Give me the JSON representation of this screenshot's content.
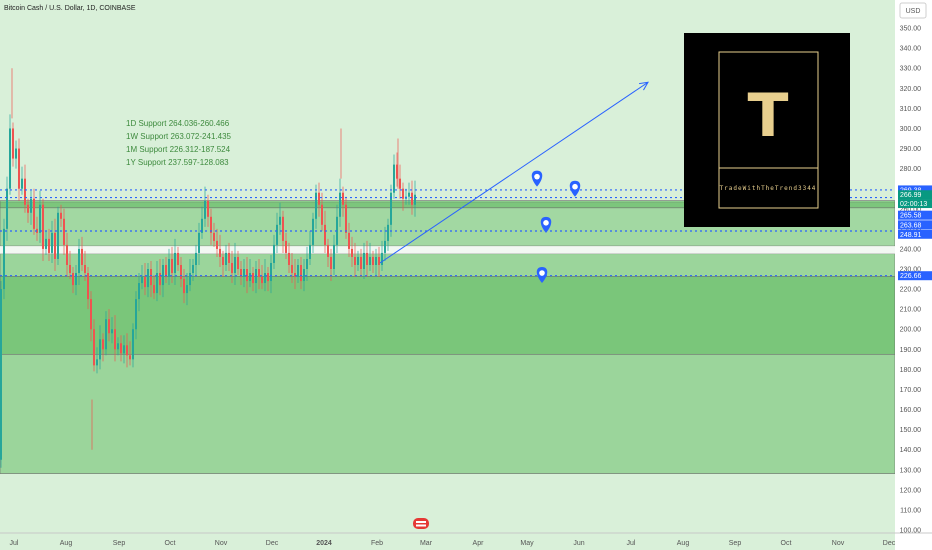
{
  "header": {
    "title": "Bitcoin Cash / U.S. Dollar, 1D, COINBASE",
    "currency_button": "USD"
  },
  "annotations": [
    "1D Support 264.036-260.466",
    "1W Support 263.072-241.435",
    "1M Support 226.312-187.524",
    "1Y Support 237.597-128.083"
  ],
  "logo": {
    "letter": "T",
    "caption": "TradeWithTheTrend3344"
  },
  "colors": {
    "background": "#d9f0d9",
    "zone_light": "#8fd08f",
    "zone_dark": "#6fc06f",
    "candle_up": "#26a69a",
    "candle_down": "#ef5350",
    "support_line": "#2962ff",
    "price_tag": "#089981",
    "level_tag": "#2962ff",
    "logo_bg": "#000000",
    "logo_gold": "#e8cf8e"
  },
  "price_tags": [
    {
      "label": "269.38",
      "value": 269.38,
      "kind": "level"
    },
    {
      "label": "266.99",
      "value": 266.99,
      "kind": "price"
    },
    {
      "label": "02:00:13",
      "value": 262.6,
      "kind": "price"
    },
    {
      "label": "265.58",
      "value": 256.8,
      "kind": "level"
    },
    {
      "label": "263.68",
      "value": 252.0,
      "kind": "level"
    },
    {
      "label": "248.91",
      "value": 247.3,
      "kind": "level"
    },
    {
      "label": "226.66",
      "value": 226.66,
      "kind": "level"
    }
  ],
  "chart_data": {
    "type": "candlestick",
    "title": "Bitcoin Cash / U.S. Dollar, 1D, COINBASE",
    "ylim": [
      100,
      360
    ],
    "y_ticks": [
      100,
      110,
      120,
      130,
      140,
      150,
      160,
      170,
      180,
      190,
      200,
      210,
      220,
      230,
      240,
      250,
      260,
      270,
      280,
      290,
      300,
      310,
      320,
      330,
      340,
      350,
      360
    ],
    "x_ticks": [
      {
        "label": "Jul",
        "x": 14
      },
      {
        "label": "Aug",
        "x": 66
      },
      {
        "label": "Sep",
        "x": 119
      },
      {
        "label": "Oct",
        "x": 170
      },
      {
        "label": "Nov",
        "x": 221
      },
      {
        "label": "Dec",
        "x": 272
      },
      {
        "label": "2024",
        "x": 324
      },
      {
        "label": "Feb",
        "x": 377
      },
      {
        "label": "Mar",
        "x": 426
      },
      {
        "label": "Apr",
        "x": 478
      },
      {
        "label": "May",
        "x": 527
      },
      {
        "label": "Jun",
        "x": 579
      },
      {
        "label": "Jul",
        "x": 631
      },
      {
        "label": "Aug",
        "x": 683
      },
      {
        "label": "Sep",
        "x": 735
      },
      {
        "label": "Oct",
        "x": 786
      },
      {
        "label": "Nov",
        "x": 838
      },
      {
        "label": "Dec",
        "x": 889
      }
    ],
    "support_zones": [
      {
        "from": 128.083,
        "to": 237.597
      },
      {
        "from": 187.524,
        "to": 226.312
      },
      {
        "from": 241.435,
        "to": 263.072
      },
      {
        "from": 260.466,
        "to": 264.036
      }
    ],
    "dotted_levels": [
      269.38,
      265.58,
      248.91,
      226.66
    ],
    "trend_arrow": {
      "from": [
        380,
        233
      ],
      "to": [
        648,
        323
      ]
    },
    "markers": [
      {
        "x": 537,
        "y": 275
      },
      {
        "x": 575,
        "y": 270
      },
      {
        "x": 546,
        "y": 252
      },
      {
        "x": 542,
        "y": 227
      }
    ],
    "price_path": [
      [
        0,
        135
      ],
      [
        2,
        220
      ],
      [
        5,
        250
      ],
      [
        8,
        270
      ],
      [
        11,
        300
      ],
      [
        14,
        285
      ],
      [
        17,
        290
      ],
      [
        20,
        270
      ],
      [
        23,
        275
      ],
      [
        26,
        262
      ],
      [
        29,
        258
      ],
      [
        32,
        265
      ],
      [
        35,
        250
      ],
      [
        38,
        248
      ],
      [
        41,
        262
      ],
      [
        44,
        240
      ],
      [
        47,
        245
      ],
      [
        50,
        238
      ],
      [
        53,
        248
      ],
      [
        56,
        235
      ],
      [
        59,
        258
      ],
      [
        62,
        255
      ],
      [
        65,
        242
      ],
      [
        68,
        232
      ],
      [
        71,
        228
      ],
      [
        74,
        222
      ],
      [
        77,
        228
      ],
      [
        80,
        240
      ],
      [
        83,
        232
      ],
      [
        86,
        228
      ],
      [
        89,
        215
      ],
      [
        92,
        200
      ],
      [
        95,
        182
      ],
      [
        98,
        185
      ],
      [
        101,
        195
      ],
      [
        104,
        190
      ],
      [
        107,
        205
      ],
      [
        110,
        198
      ],
      [
        113,
        200
      ],
      [
        116,
        190
      ],
      [
        119,
        193
      ],
      [
        122,
        188
      ],
      [
        125,
        192
      ],
      [
        128,
        187
      ],
      [
        131,
        185
      ],
      [
        134,
        200
      ],
      [
        137,
        215
      ],
      [
        140,
        223
      ],
      [
        143,
        226
      ],
      [
        146,
        221
      ],
      [
        149,
        230
      ],
      [
        152,
        222
      ],
      [
        155,
        218
      ],
      [
        158,
        228
      ],
      [
        161,
        222
      ],
      [
        164,
        232
      ],
      [
        167,
        226
      ],
      [
        170,
        235
      ],
      [
        173,
        228
      ],
      [
        176,
        238
      ],
      [
        179,
        232
      ],
      [
        182,
        225
      ],
      [
        185,
        218
      ],
      [
        188,
        222
      ],
      [
        191,
        228
      ],
      [
        194,
        232
      ],
      [
        197,
        238
      ],
      [
        200,
        248
      ],
      [
        203,
        255
      ],
      [
        206,
        264
      ],
      [
        209,
        256
      ],
      [
        212,
        248
      ],
      [
        215,
        244
      ],
      [
        218,
        240
      ],
      [
        221,
        236
      ],
      [
        224,
        232
      ],
      [
        227,
        238
      ],
      [
        230,
        233
      ],
      [
        233,
        228
      ],
      [
        236,
        236
      ],
      [
        239,
        230
      ],
      [
        242,
        226
      ],
      [
        245,
        230
      ],
      [
        248,
        224
      ],
      [
        251,
        228
      ],
      [
        254,
        223
      ],
      [
        257,
        230
      ],
      [
        260,
        226
      ],
      [
        263,
        223
      ],
      [
        266,
        228
      ],
      [
        269,
        224
      ],
      [
        272,
        233
      ],
      [
        275,
        242
      ],
      [
        278,
        252
      ],
      [
        281,
        256
      ],
      [
        284,
        244
      ],
      [
        287,
        238
      ],
      [
        290,
        232
      ],
      [
        293,
        228
      ],
      [
        296,
        226
      ],
      [
        299,
        232
      ],
      [
        302,
        224
      ],
      [
        305,
        230
      ],
      [
        308,
        235
      ],
      [
        311,
        242
      ],
      [
        314,
        255
      ],
      [
        317,
        268
      ],
      [
        320,
        262
      ],
      [
        323,
        252
      ],
      [
        326,
        242
      ],
      [
        329,
        236
      ],
      [
        332,
        230
      ],
      [
        335,
        242
      ],
      [
        338,
        256
      ],
      [
        341,
        268
      ],
      [
        344,
        262
      ],
      [
        347,
        248
      ],
      [
        350,
        240
      ],
      [
        353,
        236
      ],
      [
        356,
        232
      ],
      [
        359,
        236
      ],
      [
        362,
        230
      ],
      [
        365,
        238
      ],
      [
        368,
        232
      ],
      [
        371,
        236
      ],
      [
        374,
        232
      ],
      [
        377,
        236
      ],
      [
        380,
        232
      ],
      [
        383,
        238
      ],
      [
        386,
        244
      ],
      [
        389,
        252
      ],
      [
        392,
        268
      ],
      [
        395,
        282
      ],
      [
        398,
        275
      ],
      [
        401,
        270
      ],
      [
        404,
        265
      ],
      [
        407,
        266
      ],
      [
        410,
        268
      ],
      [
        413,
        262
      ],
      [
        416,
        266.99
      ]
    ]
  }
}
